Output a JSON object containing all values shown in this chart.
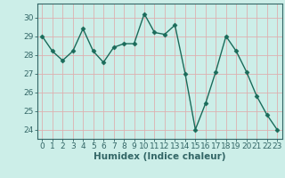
{
  "x": [
    0,
    1,
    2,
    3,
    4,
    5,
    6,
    7,
    8,
    9,
    10,
    11,
    12,
    13,
    14,
    15,
    16,
    17,
    18,
    19,
    20,
    21,
    22,
    23
  ],
  "y": [
    29,
    28.2,
    27.7,
    28.2,
    29.4,
    28.2,
    27.6,
    28.4,
    28.6,
    28.6,
    30.2,
    29.2,
    29.1,
    29.6,
    27.0,
    24.0,
    25.4,
    27.1,
    29.0,
    28.2,
    27.1,
    25.8,
    24.8,
    24.0
  ],
  "line_color": "#1a6b5a",
  "marker": "D",
  "markersize": 2.5,
  "linewidth": 1.0,
  "xlabel": "Humidex (Indice chaleur)",
  "xlim": [
    -0.5,
    23.5
  ],
  "ylim": [
    23.5,
    30.75
  ],
  "yticks": [
    24,
    25,
    26,
    27,
    28,
    29,
    30
  ],
  "xticks": [
    0,
    1,
    2,
    3,
    4,
    5,
    6,
    7,
    8,
    9,
    10,
    11,
    12,
    13,
    14,
    15,
    16,
    17,
    18,
    19,
    20,
    21,
    22,
    23
  ],
  "bg_color": "#cceee8",
  "plot_bg_color": "#cceee8",
  "grid_color_v": "#ddb0b0",
  "grid_color_h": "#ddb0b0",
  "axes_color": "#336666",
  "xlabel_fontsize": 7.5,
  "tick_fontsize": 6.5,
  "xlabel_fontweight": "bold"
}
